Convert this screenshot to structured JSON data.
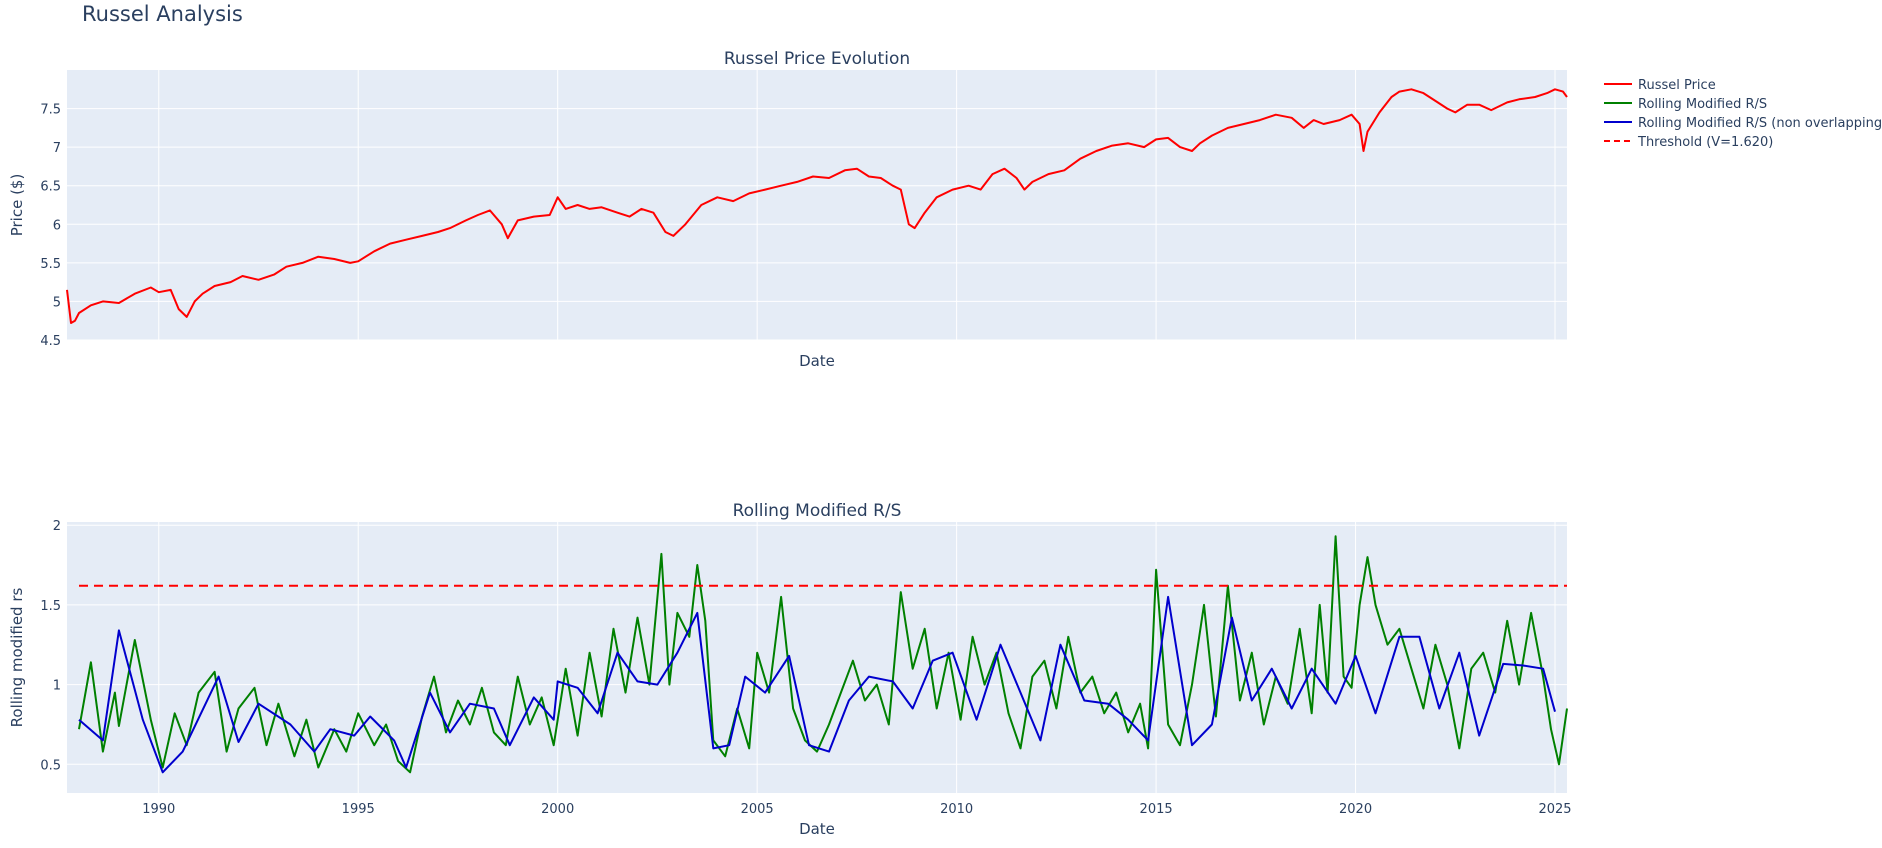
{
  "title": "Russel Analysis",
  "colors": {
    "plot_bg": "#E5ECF6",
    "grid": "#ffffff",
    "text": "#2a3f5f",
    "price": "#ff0000",
    "rolling": "#008000",
    "non_overlapping": "#0000cd",
    "threshold": "#ff0000"
  },
  "legend": {
    "placement": "top-right",
    "items": [
      {
        "label": "Russel Price",
        "color": "#ff0000",
        "dash": false
      },
      {
        "label": "Rolling Modified R/S",
        "color": "#008000",
        "dash": false
      },
      {
        "label": "Rolling Modified R/S (non overlapping)",
        "color": "#0000cd",
        "dash": false
      },
      {
        "label": "Threshold (V=1.620)",
        "color": "#ff0000",
        "dash": true
      }
    ]
  },
  "chart_data": [
    {
      "type": "line",
      "title": "Russel Price Evolution",
      "xlabel": "Date",
      "ylabel": "Price ($)",
      "xlim": [
        1987.7,
        2025.3
      ],
      "ylim": [
        4.5,
        8.0
      ],
      "y_ticks": [
        4.5,
        5,
        5.5,
        6,
        6.5,
        7,
        7.5
      ],
      "y_tick_labels": [
        "4.5",
        "5",
        "5.5",
        "6",
        "6.5",
        "7",
        "7.5"
      ],
      "x_ticks": [
        1990,
        1995,
        2000,
        2005,
        2010,
        2015,
        2020,
        2025
      ],
      "x_tick_labels_shown": false,
      "grid": true,
      "series": [
        {
          "name": "Russel Price",
          "x": [
            1987.7,
            1987.8,
            1987.9,
            1988.0,
            1988.3,
            1988.6,
            1989.0,
            1989.4,
            1989.8,
            1990.0,
            1990.3,
            1990.5,
            1990.7,
            1990.9,
            1991.1,
            1991.4,
            1991.8,
            1992.1,
            1992.5,
            1992.9,
            1993.2,
            1993.6,
            1994.0,
            1994.4,
            1994.8,
            1995.0,
            1995.4,
            1995.8,
            1996.2,
            1996.6,
            1997.0,
            1997.3,
            1997.7,
            1998.0,
            1998.3,
            1998.6,
            1998.75,
            1999.0,
            1999.4,
            1999.8,
            2000.0,
            2000.2,
            2000.5,
            2000.8,
            2001.1,
            2001.5,
            2001.8,
            2002.1,
            2002.4,
            2002.7,
            2002.9,
            2003.2,
            2003.6,
            2004.0,
            2004.4,
            2004.8,
            2005.2,
            2005.6,
            2006.0,
            2006.4,
            2006.8,
            2007.2,
            2007.5,
            2007.8,
            2008.1,
            2008.4,
            2008.6,
            2008.8,
            2008.95,
            2009.2,
            2009.5,
            2009.9,
            2010.3,
            2010.6,
            2010.9,
            2011.2,
            2011.5,
            2011.7,
            2011.9,
            2012.3,
            2012.7,
            2013.1,
            2013.5,
            2013.9,
            2014.3,
            2014.7,
            2015.0,
            2015.3,
            2015.6,
            2015.9,
            2016.1,
            2016.4,
            2016.8,
            2017.2,
            2017.6,
            2018.0,
            2018.4,
            2018.7,
            2018.95,
            2019.2,
            2019.6,
            2019.9,
            2020.1,
            2020.2,
            2020.3,
            2020.6,
            2020.9,
            2021.1,
            2021.4,
            2021.7,
            2022.0,
            2022.3,
            2022.5,
            2022.8,
            2023.1,
            2023.4,
            2023.8,
            2024.1,
            2024.5,
            2024.8,
            2025.0,
            2025.2,
            2025.3
          ],
          "y": [
            5.15,
            4.72,
            4.75,
            4.85,
            4.95,
            5.0,
            4.98,
            5.1,
            5.18,
            5.12,
            5.15,
            4.9,
            4.8,
            5.0,
            5.1,
            5.2,
            5.25,
            5.33,
            5.28,
            5.35,
            5.45,
            5.5,
            5.58,
            5.55,
            5.5,
            5.52,
            5.65,
            5.75,
            5.8,
            5.85,
            5.9,
            5.95,
            6.05,
            6.12,
            6.18,
            6.0,
            5.82,
            6.05,
            6.1,
            6.12,
            6.35,
            6.2,
            6.25,
            6.2,
            6.22,
            6.15,
            6.1,
            6.2,
            6.15,
            5.9,
            5.85,
            6.0,
            6.25,
            6.35,
            6.3,
            6.4,
            6.45,
            6.5,
            6.55,
            6.62,
            6.6,
            6.7,
            6.72,
            6.62,
            6.6,
            6.5,
            6.45,
            6.0,
            5.95,
            6.15,
            6.35,
            6.45,
            6.5,
            6.45,
            6.65,
            6.72,
            6.6,
            6.45,
            6.55,
            6.65,
            6.7,
            6.85,
            6.95,
            7.02,
            7.05,
            7.0,
            7.1,
            7.12,
            7.0,
            6.95,
            7.05,
            7.15,
            7.25,
            7.3,
            7.35,
            7.42,
            7.38,
            7.25,
            7.35,
            7.3,
            7.35,
            7.42,
            7.3,
            6.95,
            7.2,
            7.45,
            7.65,
            7.72,
            7.75,
            7.7,
            7.6,
            7.5,
            7.45,
            7.55,
            7.55,
            7.48,
            7.58,
            7.62,
            7.65,
            7.7,
            7.75,
            7.72,
            7.65
          ]
        }
      ]
    },
    {
      "type": "line",
      "title": "Rolling Modified R/S",
      "xlabel": "Date",
      "ylabel": "Rolling modified rs",
      "xlim": [
        1987.7,
        2025.3
      ],
      "ylim": [
        0.32,
        2.02
      ],
      "y_ticks": [
        0.5,
        1,
        1.5,
        2
      ],
      "y_tick_labels": [
        "0.5",
        "1",
        "1.5",
        "2"
      ],
      "x_ticks": [
        1990,
        1995,
        2000,
        2005,
        2010,
        2015,
        2020,
        2025
      ],
      "x_tick_labels": [
        "1990",
        "1995",
        "2000",
        "2005",
        "2010",
        "2015",
        "2020",
        "2025"
      ],
      "grid": true,
      "series": [
        {
          "name": "Rolling Modified R/S",
          "x": [
            1988.0,
            1988.3,
            1988.6,
            1988.9,
            1989.0,
            1989.4,
            1989.8,
            1990.1,
            1990.4,
            1990.7,
            1991.0,
            1991.4,
            1991.7,
            1992.0,
            1992.4,
            1992.7,
            1993.0,
            1993.4,
            1993.7,
            1994.0,
            1994.4,
            1994.7,
            1995.0,
            1995.4,
            1995.7,
            1996.0,
            1996.3,
            1996.6,
            1996.9,
            1997.2,
            1997.5,
            1997.8,
            1998.1,
            1998.4,
            1998.7,
            1999.0,
            1999.3,
            1999.6,
            1999.9,
            2000.2,
            2000.5,
            2000.8,
            2001.1,
            2001.4,
            2001.7,
            2002.0,
            2002.3,
            2002.6,
            2002.8,
            2003.0,
            2003.3,
            2003.5,
            2003.7,
            2003.9,
            2004.2,
            2004.5,
            2004.8,
            2005.0,
            2005.3,
            2005.6,
            2005.9,
            2006.2,
            2006.5,
            2006.8,
            2007.1,
            2007.4,
            2007.7,
            2008.0,
            2008.3,
            2008.6,
            2008.9,
            2009.2,
            2009.5,
            2009.8,
            2010.1,
            2010.4,
            2010.7,
            2011.0,
            2011.3,
            2011.6,
            2011.9,
            2012.2,
            2012.5,
            2012.8,
            2013.1,
            2013.4,
            2013.7,
            2014.0,
            2014.3,
            2014.6,
            2014.8,
            2015.0,
            2015.3,
            2015.6,
            2015.9,
            2016.2,
            2016.5,
            2016.8,
            2017.1,
            2017.4,
            2017.7,
            2018.0,
            2018.3,
            2018.6,
            2018.9,
            2019.1,
            2019.3,
            2019.5,
            2019.7,
            2019.9,
            2020.1,
            2020.3,
            2020.5,
            2020.8,
            2021.1,
            2021.4,
            2021.7,
            2022.0,
            2022.3,
            2022.6,
            2022.9,
            2023.2,
            2023.5,
            2023.8,
            2024.1,
            2024.4,
            2024.7,
            2024.9,
            2025.1,
            2025.3
          ],
          "y": [
            0.72,
            1.14,
            0.58,
            0.95,
            0.74,
            1.28,
            0.78,
            0.48,
            0.82,
            0.62,
            0.95,
            1.08,
            0.58,
            0.85,
            0.98,
            0.62,
            0.88,
            0.55,
            0.78,
            0.48,
            0.72,
            0.58,
            0.82,
            0.62,
            0.75,
            0.52,
            0.45,
            0.8,
            1.05,
            0.7,
            0.9,
            0.75,
            0.98,
            0.7,
            0.62,
            1.05,
            0.75,
            0.92,
            0.62,
            1.1,
            0.68,
            1.2,
            0.8,
            1.35,
            0.95,
            1.42,
            1.0,
            1.82,
            1.0,
            1.45,
            1.3,
            1.75,
            1.4,
            0.65,
            0.55,
            0.85,
            0.6,
            1.2,
            0.95,
            1.55,
            0.85,
            0.65,
            0.58,
            0.75,
            0.95,
            1.15,
            0.9,
            1.0,
            0.75,
            1.58,
            1.1,
            1.35,
            0.85,
            1.2,
            0.78,
            1.3,
            1.0,
            1.2,
            0.82,
            0.6,
            1.05,
            1.15,
            0.85,
            1.3,
            0.95,
            1.05,
            0.82,
            0.95,
            0.7,
            0.88,
            0.6,
            1.72,
            0.75,
            0.62,
            1.0,
            1.5,
            0.8,
            1.62,
            0.9,
            1.2,
            0.75,
            1.05,
            0.88,
            1.35,
            0.82,
            1.5,
            0.95,
            1.93,
            1.05,
            0.98,
            1.5,
            1.8,
            1.5,
            1.25,
            1.35,
            1.1,
            0.85,
            1.25,
            1.0,
            0.6,
            1.1,
            1.2,
            0.95,
            1.4,
            1.0,
            1.45,
            1.05,
            0.72,
            0.5,
            0.85
          ]
        },
        {
          "name": "Rolling Modified R/S (non overlapping)",
          "x": [
            1988.0,
            1988.6,
            1989.0,
            1989.6,
            1990.1,
            1990.6,
            1991.5,
            1992.0,
            1992.5,
            1993.3,
            1993.9,
            1994.3,
            1994.9,
            1995.3,
            1995.9,
            1996.2,
            1996.8,
            1997.3,
            1997.8,
            1998.4,
            1998.8,
            1999.4,
            1999.9,
            2000.0,
            2000.5,
            2001.0,
            2001.5,
            2002.0,
            2002.5,
            2003.0,
            2003.5,
            2003.9,
            2004.3,
            2004.7,
            2005.2,
            2005.8,
            2006.3,
            2006.8,
            2007.3,
            2007.8,
            2008.4,
            2008.9,
            2009.4,
            2009.9,
            2010.5,
            2011.1,
            2011.6,
            2012.1,
            2012.6,
            2013.2,
            2013.8,
            2014.3,
            2014.8,
            2015.3,
            2015.9,
            2016.4,
            2016.9,
            2017.4,
            2017.9,
            2018.4,
            2018.9,
            2019.5,
            2020.0,
            2020.5,
            2021.1,
            2021.6,
            2022.1,
            2022.6,
            2023.1,
            2023.7,
            2024.2,
            2024.7,
            2025.0
          ],
          "y": [
            0.78,
            0.65,
            1.34,
            0.78,
            0.45,
            0.58,
            1.05,
            0.64,
            0.88,
            0.75,
            0.58,
            0.72,
            0.68,
            0.8,
            0.65,
            0.48,
            0.95,
            0.7,
            0.88,
            0.85,
            0.62,
            0.92,
            0.78,
            1.02,
            0.98,
            0.82,
            1.2,
            1.02,
            1.0,
            1.2,
            1.45,
            0.6,
            0.62,
            1.05,
            0.95,
            1.18,
            0.62,
            0.58,
            0.9,
            1.05,
            1.02,
            0.85,
            1.15,
            1.2,
            0.78,
            1.25,
            0.95,
            0.65,
            1.25,
            0.9,
            0.88,
            0.78,
            0.65,
            1.55,
            0.62,
            0.75,
            1.42,
            0.9,
            1.1,
            0.85,
            1.1,
            0.88,
            1.18,
            0.82,
            1.3,
            1.3,
            0.85,
            1.2,
            0.68,
            1.13,
            1.12,
            1.1,
            0.83
          ],
          "note_color": "#0000cd"
        },
        {
          "name": "Threshold (V=1.620)",
          "x": [
            1988.0,
            2025.3
          ],
          "y": [
            1.62,
            1.62
          ],
          "dash": "dash"
        }
      ]
    }
  ]
}
